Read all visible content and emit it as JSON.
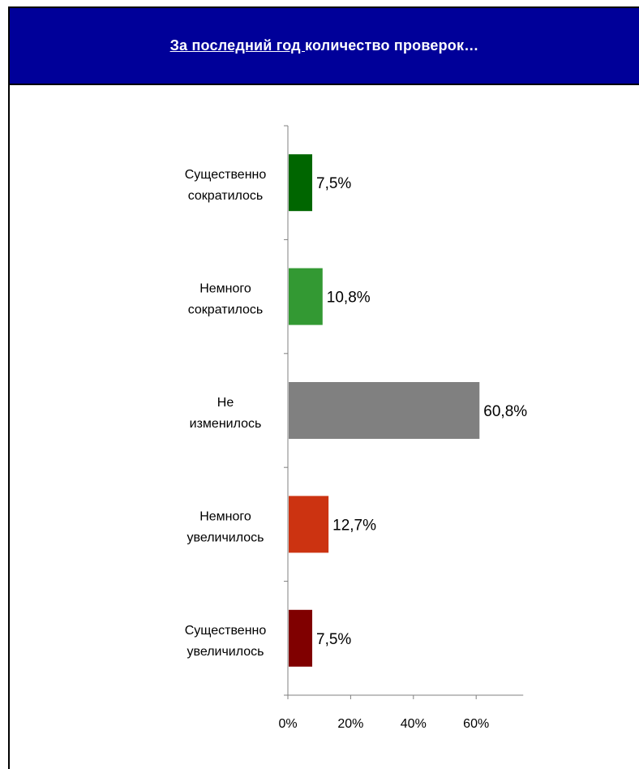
{
  "header": {
    "title_underlined": "За последний год ",
    "title_rest": "количество проверок…",
    "background": "#000099"
  },
  "chart_data": {
    "type": "bar",
    "orientation": "horizontal",
    "categories": [
      [
        "Существенно",
        "сократилось"
      ],
      [
        "Немного",
        "сократилось"
      ],
      [
        "Не",
        "изменилось"
      ],
      [
        "Немного",
        "увеличилось"
      ],
      [
        "Существенно",
        "увеличилось"
      ]
    ],
    "values": [
      7.5,
      10.8,
      60.8,
      12.7,
      7.5
    ],
    "value_labels": [
      "7,5%",
      "10,8%",
      "60,8%",
      "12,7%",
      "7,5%"
    ],
    "colors": [
      "#006600",
      "#339933",
      "#808080",
      "#CC3311",
      "#800000"
    ],
    "x_ticks": [
      "0%",
      "20%",
      "40%",
      "60%"
    ],
    "xlim": [
      0,
      75
    ],
    "grid": false,
    "legend": "none"
  }
}
